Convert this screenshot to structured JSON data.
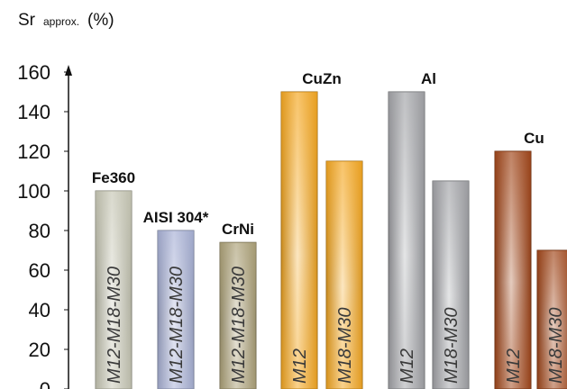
{
  "chart_data": {
    "type": "bar",
    "ylabel": {
      "main": "Sr",
      "sub": "approx.",
      "unit": "(%)"
    },
    "ylim": [
      0,
      160
    ],
    "yticks": [
      0,
      20,
      40,
      60,
      80,
      100,
      120,
      140,
      160
    ],
    "grid": false,
    "groups": [
      {
        "label": "Fe360",
        "bars": [
          {
            "label": "M12-M18-M30",
            "value": 100,
            "color": "#c8c8b6"
          }
        ]
      },
      {
        "label": "AISI 304*",
        "bars": [
          {
            "label": "M12-M18-M30",
            "value": 80,
            "color": "#a9b2d6"
          }
        ]
      },
      {
        "label": "CrNi",
        "bars": [
          {
            "label": "M12-M18-M30",
            "value": 74,
            "color": "#aea37a"
          }
        ]
      },
      {
        "label": "CuZn",
        "bars": [
          {
            "label": "M12",
            "value": 150,
            "color": "#f5a823"
          },
          {
            "label": "M18-M30",
            "value": 115,
            "color": "#f5a823"
          }
        ]
      },
      {
        "label": "Al",
        "bars": [
          {
            "label": "M12",
            "value": 150,
            "color": "#a3a4a8"
          },
          {
            "label": "M18-M30",
            "value": 105,
            "color": "#a3a4a8"
          }
        ]
      },
      {
        "label": "Cu",
        "bars": [
          {
            "label": "M12",
            "value": 120,
            "color": "#a2481c"
          },
          {
            "label": "M18-M30",
            "value": 70,
            "color": "#a2481c"
          }
        ]
      }
    ]
  }
}
